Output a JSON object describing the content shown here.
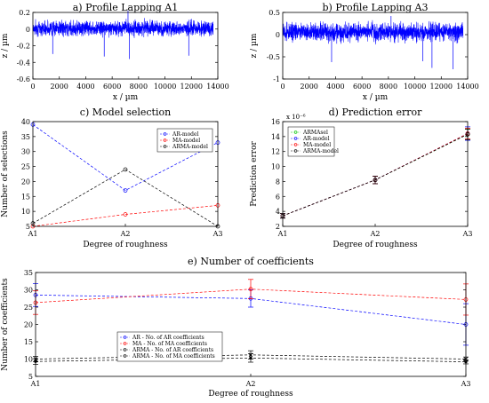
{
  "chart_data": [
    {
      "id": "a",
      "type": "line",
      "title": "a) Profile Lapping A1",
      "xlabel": "x / µm",
      "ylabel": "z / µm",
      "xlim": [
        0,
        14000
      ],
      "ylim": [
        -0.6,
        0.2
      ],
      "xticks": [
        "0",
        "2000",
        "4000",
        "6000",
        "8000",
        "10000",
        "12000",
        "14000"
      ],
      "yticks": [
        "0.2",
        "0",
        "-0.2",
        "-0.4",
        "-0.6"
      ],
      "color": "#0000ff",
      "signal": {
        "x_end": 13650,
        "center": 0.01,
        "amp": 0.13,
        "spikes": [
          {
            "x": 7200,
            "z": 0.22
          },
          {
            "x": 7300,
            "z": -0.36
          },
          {
            "x": 1500,
            "z": -0.3
          },
          {
            "x": 5400,
            "z": -0.33
          },
          {
            "x": 11800,
            "z": -0.32
          }
        ]
      }
    },
    {
      "id": "b",
      "type": "line",
      "title": "b) Profile Lapping A3",
      "xlabel": "x / µm",
      "ylabel": "z / µm",
      "xlim": [
        0,
        14000
      ],
      "ylim": [
        -1,
        0.5
      ],
      "xticks": [
        "0",
        "2000",
        "4000",
        "6000",
        "8000",
        "10000",
        "12000",
        "14000"
      ],
      "yticks": [
        "0.5",
        "0",
        "-0.5",
        "-1"
      ],
      "color": "#0000ff",
      "signal": {
        "x_end": 13650,
        "center": 0.05,
        "amp": 0.3,
        "spikes": [
          {
            "x": 11300,
            "z": -0.75
          },
          {
            "x": 12900,
            "z": -0.78
          },
          {
            "x": 3700,
            "z": -0.62
          },
          {
            "x": 8200,
            "z": 0.42
          },
          {
            "x": 10600,
            "z": -0.6
          }
        ]
      }
    },
    {
      "id": "c",
      "type": "line",
      "title": "c) Model selection",
      "xlabel": "Degree of roughness",
      "ylabel": "Number of selections",
      "categories": [
        "A1",
        "A2",
        "A3"
      ],
      "ylim": [
        5,
        40
      ],
      "yticks": [
        "40",
        "35",
        "30",
        "25",
        "20",
        "15",
        "10",
        "5"
      ],
      "legend": "top-right",
      "series": [
        {
          "name": "AR-model",
          "color": "#0000ff",
          "values": [
            39,
            17,
            33
          ]
        },
        {
          "name": "MA-model",
          "color": "#ff0000",
          "values": [
            5,
            9,
            12
          ]
        },
        {
          "name": "ARMA-model",
          "color": "#000000",
          "values": [
            6,
            24,
            5
          ]
        }
      ]
    },
    {
      "id": "d",
      "type": "line",
      "title": "d) Prediction error",
      "xlabel": "Degree of roughness",
      "ylabel": "Prediction error",
      "multiplier": "x 10⁻⁶",
      "categories": [
        "A1",
        "A2",
        "A3"
      ],
      "ylim": [
        2,
        16
      ],
      "yticks": [
        "16",
        "14",
        "12",
        "10",
        "8",
        "6",
        "4",
        "2"
      ],
      "legend": "top-left",
      "series": [
        {
          "name": "ARMAsel",
          "color": "#00c800",
          "values": [
            3.4,
            8.2,
            14.3
          ],
          "err": [
            0.3,
            0.5,
            0.7
          ]
        },
        {
          "name": "AR-model",
          "color": "#0000ff",
          "values": [
            3.4,
            8.2,
            14.4
          ],
          "err": [
            0.3,
            0.5,
            0.9
          ]
        },
        {
          "name": "MA-model",
          "color": "#ff0000",
          "values": [
            3.4,
            8.2,
            14.4
          ],
          "err": [
            0.3,
            0.5,
            0.7
          ]
        },
        {
          "name": "ARMA-model",
          "color": "#000000",
          "values": [
            3.4,
            8.2,
            14.3
          ],
          "err": [
            0.3,
            0.5,
            0.7
          ]
        }
      ]
    },
    {
      "id": "e",
      "type": "line",
      "title": "e) Number of coefficients",
      "xlabel": "Degree of roughness",
      "ylabel": "Number of coefficients",
      "categories": [
        "A1",
        "A2",
        "A3"
      ],
      "ylim": [
        5,
        35
      ],
      "yticks": [
        "35",
        "30",
        "25",
        "20",
        "15",
        "10",
        "5"
      ],
      "legend": "center",
      "series": [
        {
          "name": "AR - No. of AR coefficients",
          "color": "#0000ff",
          "marker": "o",
          "values": [
            28.5,
            27.5,
            20
          ],
          "err": [
            3.3,
            2.5,
            6
          ]
        },
        {
          "name": "MA - No. of MA coefficients",
          "color": "#ff0000",
          "marker": "o",
          "values": [
            26.3,
            30.2,
            27.2
          ],
          "err": [
            3.4,
            2.8,
            4.5
          ]
        },
        {
          "name": "ARMA - No. of AR coefficients",
          "color": "#000000",
          "marker": "x",
          "values": [
            10,
            11.2,
            10
          ],
          "err": [
            0.8,
            1.2,
            0.6
          ]
        },
        {
          "name": "ARMA - No. of MA coefficients",
          "color": "#000000",
          "marker": "*",
          "values": [
            9.3,
            10.3,
            9.2
          ],
          "err": [
            0.8,
            1.2,
            0.6
          ]
        }
      ]
    }
  ]
}
